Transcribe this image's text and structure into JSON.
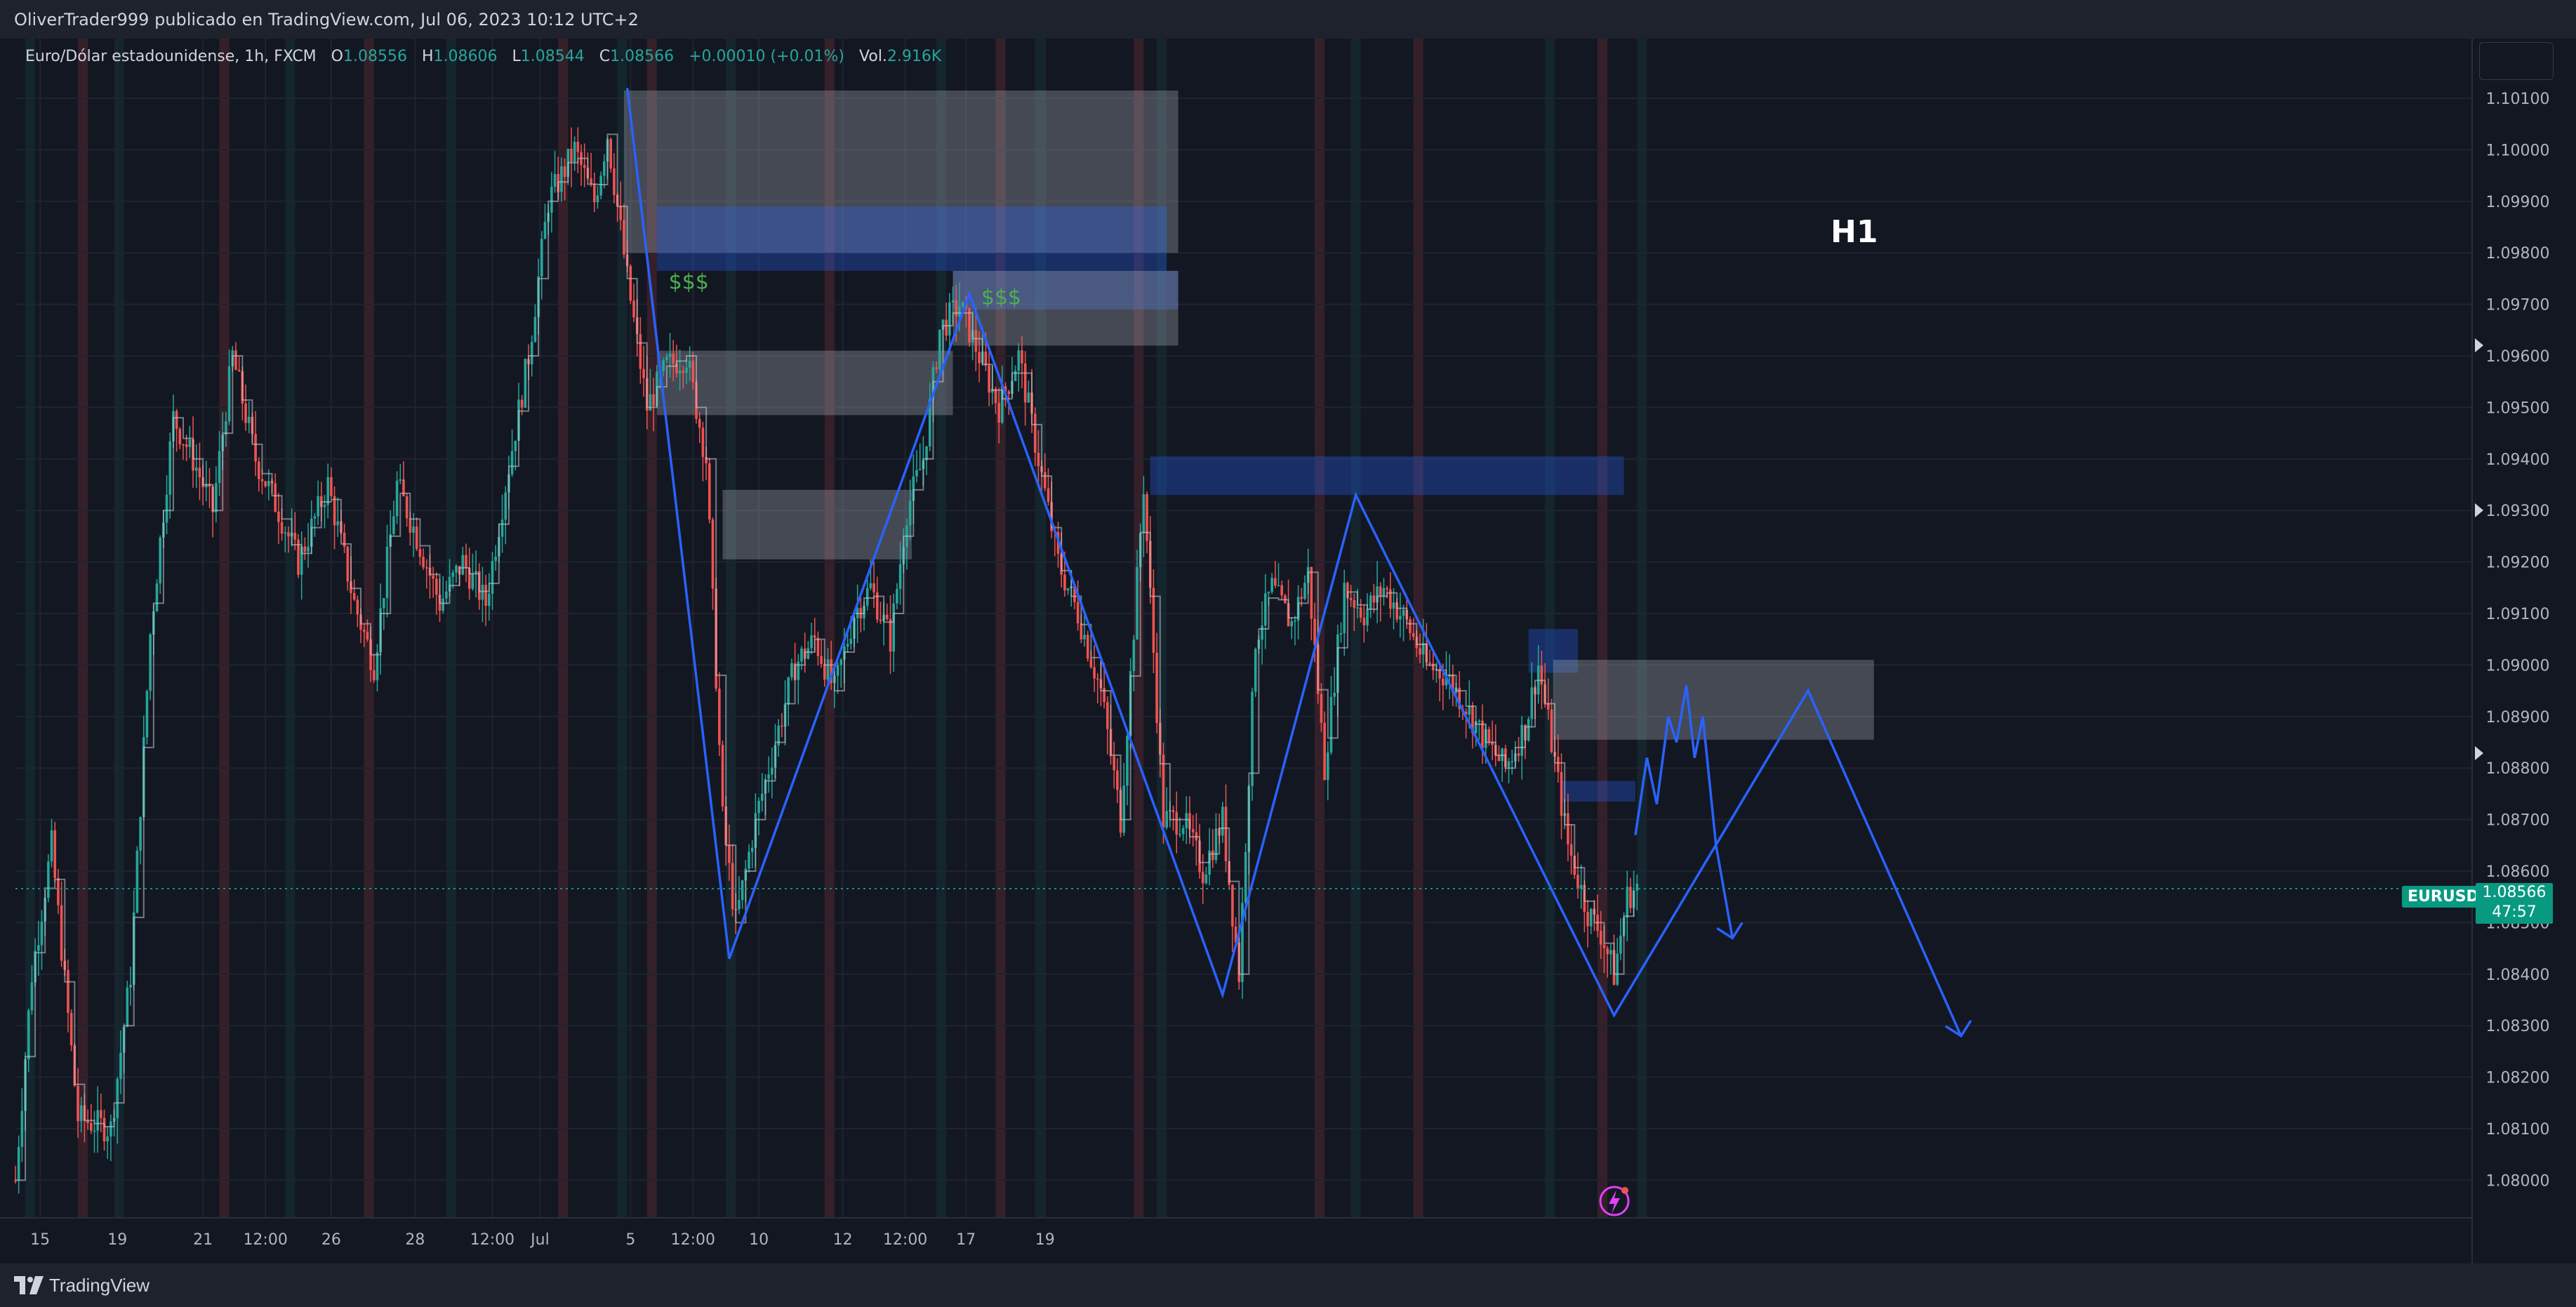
{
  "header": {
    "publisher_line": "OliverTrader999 publicado en TradingView.com, Jul 06, 2023 10:12 UTC+2"
  },
  "legend": {
    "symbol_desc": "Euro/Dólar estadounidense, 1h, FXCM",
    "open_label": "O",
    "open": "1.08556",
    "high_label": "H",
    "high": "1.08606",
    "low_label": "L",
    "low": "1.08544",
    "close_label": "C",
    "close": "1.08566",
    "change": "+0.00010 (+0.01%)",
    "volume_label": "Vol.",
    "volume": "2.916K"
  },
  "annotation": {
    "timeframe_label": "H1"
  },
  "price_badge": {
    "symbol": "EURUSD",
    "price": "1.08566",
    "countdown": "47:57"
  },
  "footer": {
    "brand": "TradingView"
  },
  "colors": {
    "background": "#131722",
    "bull": "#26a69a",
    "bear": "#ef5350",
    "projection_line": "#2962ff",
    "zone_gray": "#b2b5be",
    "zone_blue": "#2962ff"
  },
  "chart_data": {
    "type": "candlestick",
    "symbol": "EURUSD",
    "timeframe": "1h",
    "x_ticks": [
      "15",
      "19",
      "21",
      "12:00",
      "26",
      "28",
      "12:00",
      "Jul",
      "5",
      "12:00",
      "10",
      "12",
      "12:00",
      "17",
      "19"
    ],
    "y_ticks": [
      "1.10100",
      "1.10000",
      "1.09900",
      "1.09800",
      "1.09700",
      "1.09600",
      "1.09500",
      "1.09400",
      "1.09300",
      "1.09200",
      "1.09100",
      "1.09000",
      "1.08900",
      "1.08800",
      "1.08700",
      "1.08600",
      "1.08500",
      "1.08400",
      "1.08300",
      "1.08200",
      "1.08100",
      "1.08000"
    ],
    "ylim": [
      1.0792,
      1.1022
    ],
    "grid": true,
    "last_price": 1.08566,
    "price_path": [
      [
        0,
        1.08
      ],
      [
        10,
        1.084
      ],
      [
        22,
        1.0865
      ],
      [
        38,
        1.0812
      ],
      [
        58,
        1.081
      ],
      [
        70,
        1.084
      ],
      [
        82,
        1.0906
      ],
      [
        96,
        1.0948
      ],
      [
        108,
        1.094
      ],
      [
        120,
        1.093
      ],
      [
        132,
        1.096
      ],
      [
        146,
        1.094
      ],
      [
        160,
        1.093
      ],
      [
        172,
        1.092
      ],
      [
        190,
        1.0935
      ],
      [
        206,
        1.0912
      ],
      [
        218,
        1.09
      ],
      [
        232,
        1.0935
      ],
      [
        244,
        1.0925
      ],
      [
        258,
        1.0912
      ],
      [
        272,
        1.092
      ],
      [
        286,
        1.0912
      ],
      [
        298,
        1.0935
      ],
      [
        312,
        1.096
      ],
      [
        324,
        1.099
      ],
      [
        340,
        1.1
      ],
      [
        352,
        1.099
      ],
      [
        360,
        1.1003
      ],
      [
        372,
        1.0975
      ],
      [
        384,
        1.095
      ],
      [
        396,
        1.0958
      ],
      [
        408,
        1.096
      ],
      [
        420,
        1.094
      ],
      [
        430,
        1.087
      ],
      [
        438,
        1.085
      ],
      [
        450,
        1.087
      ],
      [
        462,
        1.0885
      ],
      [
        474,
        1.09
      ],
      [
        486,
        1.0905
      ],
      [
        498,
        1.0895
      ],
      [
        510,
        1.091
      ],
      [
        520,
        1.0915
      ],
      [
        532,
        1.0905
      ],
      [
        542,
        1.093
      ],
      [
        552,
        1.094
      ],
      [
        562,
        1.0965
      ],
      [
        574,
        1.097
      ],
      [
        586,
        1.096
      ],
      [
        598,
        1.095
      ],
      [
        610,
        1.096
      ],
      [
        622,
        1.094
      ],
      [
        634,
        1.092
      ],
      [
        646,
        1.091
      ],
      [
        660,
        1.0895
      ],
      [
        672,
        1.087
      ],
      [
        686,
        1.0935
      ],
      [
        698,
        1.087
      ],
      [
        710,
        1.087
      ],
      [
        722,
        1.086
      ],
      [
        734,
        1.087
      ],
      [
        744,
        1.084
      ],
      [
        754,
        1.0905
      ],
      [
        764,
        1.0915
      ],
      [
        776,
        1.0908
      ],
      [
        786,
        1.0918
      ],
      [
        796,
        1.088
      ],
      [
        808,
        1.0915
      ],
      [
        820,
        1.091
      ],
      [
        832,
        1.0915
      ],
      [
        846,
        1.0908
      ],
      [
        858,
        1.09
      ],
      [
        870,
        1.0898
      ],
      [
        882,
        1.0892
      ],
      [
        894,
        1.0885
      ],
      [
        906,
        1.088
      ],
      [
        918,
        1.0888
      ],
      [
        926,
        1.09
      ],
      [
        934,
        1.0885
      ],
      [
        944,
        1.0865
      ],
      [
        956,
        1.0852
      ],
      [
        964,
        1.0848
      ],
      [
        972,
        1.084
      ],
      [
        980,
        1.0855
      ],
      [
        986,
        1.0857
      ]
    ],
    "zones": [
      {
        "kind": "gray",
        "x0": 370,
        "x1": 707,
        "y_top": 1.10115,
        "y_bottom": 1.098
      },
      {
        "kind": "blue",
        "x0": 390,
        "x1": 700,
        "y_top": 1.0989,
        "y_bottom": 1.09765
      },
      {
        "kind": "blue",
        "x0": 570,
        "x1": 707,
        "y_top": 1.09765,
        "y_bottom": 1.0969
      },
      {
        "kind": "gray",
        "x0": 570,
        "x1": 707,
        "y_top": 1.09765,
        "y_bottom": 1.0962
      },
      {
        "kind": "gray",
        "x0": 390,
        "x1": 570,
        "y_top": 1.0961,
        "y_bottom": 1.09485
      },
      {
        "kind": "gray",
        "x0": 430,
        "x1": 545,
        "y_top": 1.0934,
        "y_bottom": 1.09205
      },
      {
        "kind": "blue",
        "x0": 690,
        "x1": 978,
        "y_top": 1.09405,
        "y_bottom": 1.0933
      },
      {
        "kind": "blue",
        "x0": 920,
        "x1": 950,
        "y_top": 1.0907,
        "y_bottom": 1.08985
      },
      {
        "kind": "gray",
        "x0": 935,
        "x1": 1130,
        "y_top": 1.0901,
        "y_bottom": 1.08855
      },
      {
        "kind": "blue",
        "x0": 940,
        "x1": 985,
        "y_top": 1.08775,
        "y_bottom": 1.08735
      }
    ],
    "structure_line": [
      [
        372,
        1.1012
      ],
      [
        434,
        1.0843
      ],
      [
        580,
        1.0972
      ],
      [
        734,
        1.0836
      ],
      [
        815,
        1.0933
      ],
      [
        972,
        1.0832
      ],
      [
        1090,
        1.0895
      ],
      [
        1183,
        1.0828
      ]
    ],
    "projection_small": [
      [
        985,
        1.0867
      ],
      [
        992,
        1.0882
      ],
      [
        998,
        1.0873
      ],
      [
        1005,
        1.089
      ],
      [
        1010,
        1.0885
      ],
      [
        1016,
        1.0896
      ],
      [
        1021,
        1.0882
      ],
      [
        1026,
        1.089
      ],
      [
        1034,
        1.0865
      ],
      [
        1044,
        1.0847
      ]
    ],
    "liquidity_labels": [
      {
        "text": "$$$",
        "x": 410,
        "y": 1.0973
      },
      {
        "text": "$$$",
        "x": 600,
        "y": 1.097
      }
    ]
  }
}
